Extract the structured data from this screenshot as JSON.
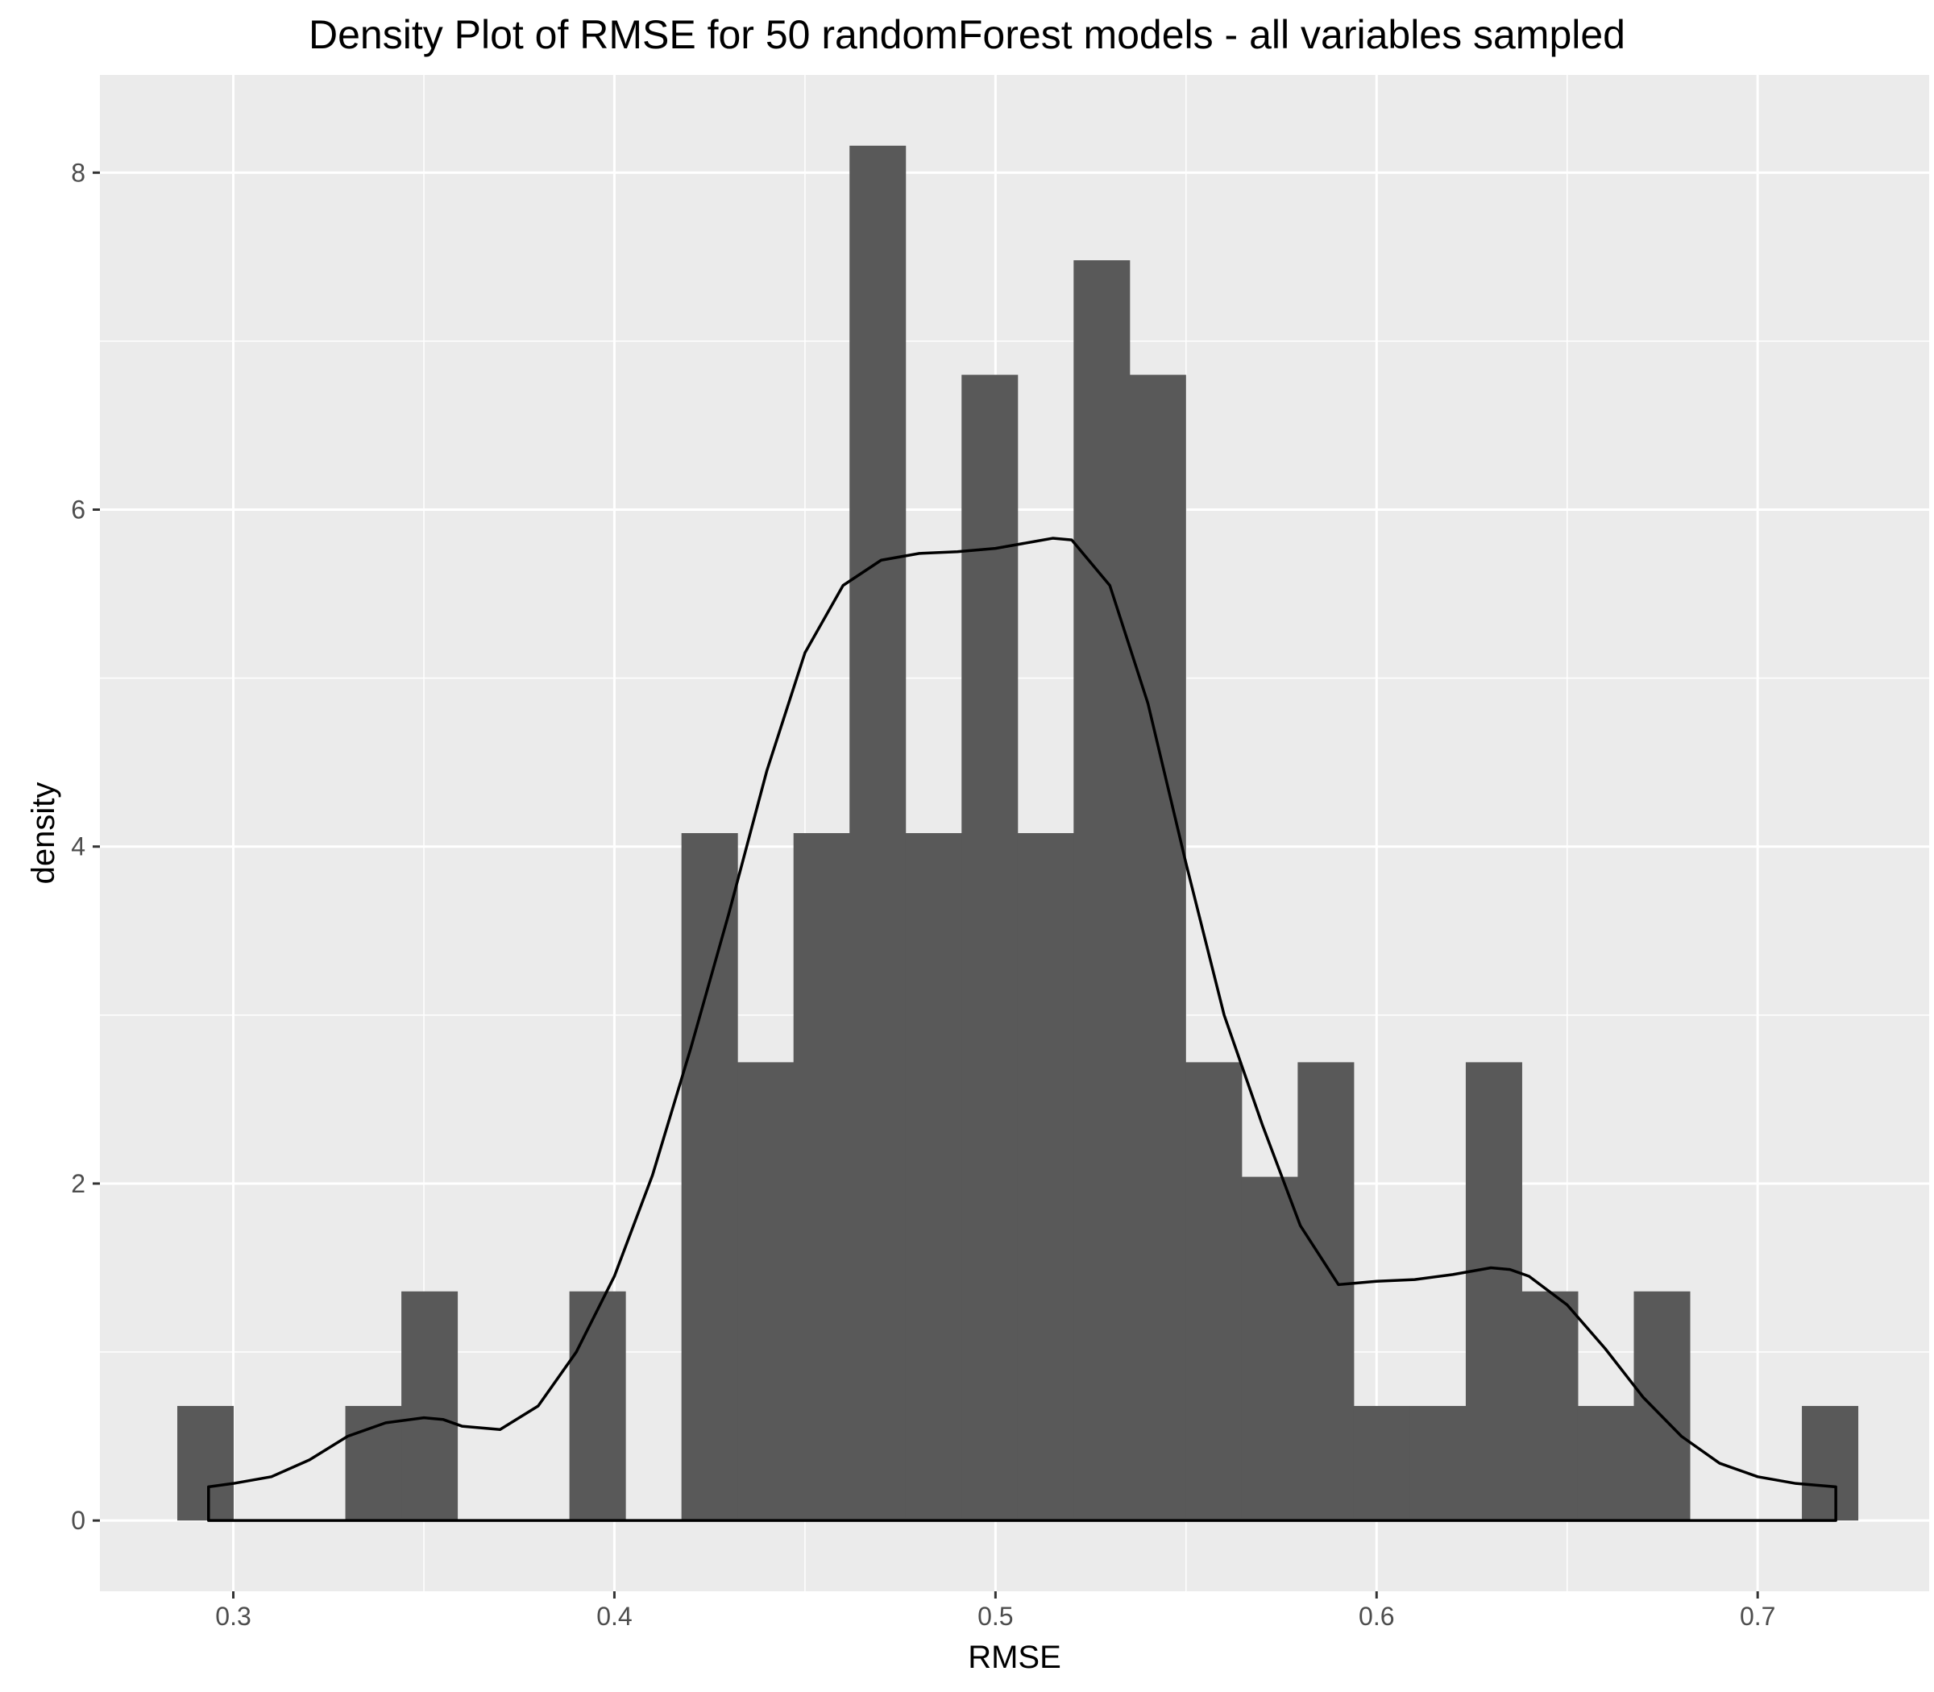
{
  "chart_data": {
    "type": "bar",
    "title": "Density Plot of RMSE for 50 randomForest models - all variables sampled",
    "xlabel": "RMSE",
    "ylabel": "density",
    "xlim": [
      0.265,
      0.745
    ],
    "ylim": [
      -0.42,
      8.58
    ],
    "x_ticks": [
      0.3,
      0.4,
      0.5,
      0.6,
      0.7
    ],
    "x_tick_labels": [
      "0.3",
      "0.4",
      "0.5",
      "0.6",
      "0.7"
    ],
    "y_ticks": [
      0,
      2,
      4,
      6,
      8
    ],
    "y_tick_labels": [
      "0",
      "2",
      "4",
      "6",
      "8"
    ],
    "grid": true,
    "histogram": {
      "bin_width": 0.0147,
      "bin_starts": [
        0.2853,
        0.3,
        0.3147,
        0.3294,
        0.3441,
        0.3588,
        0.3735,
        0.3882,
        0.4029,
        0.4176,
        0.4323,
        0.447,
        0.4617,
        0.4764,
        0.4911,
        0.5058,
        0.5205,
        0.5352,
        0.5499,
        0.5646,
        0.5793,
        0.594,
        0.6087,
        0.6234,
        0.6381,
        0.6528,
        0.6675,
        0.6822,
        0.6969,
        0.7116
      ],
      "densities": [
        0.68,
        0,
        0,
        0.68,
        1.36,
        0,
        0,
        1.36,
        0,
        4.08,
        2.72,
        4.08,
        8.16,
        4.08,
        6.8,
        4.08,
        7.48,
        6.8,
        2.72,
        2.04,
        2.72,
        0.68,
        0.68,
        2.72,
        1.36,
        0.68,
        1.36,
        0,
        0,
        0.68
      ],
      "fill_color": "#595959"
    },
    "density_curve": {
      "x": [
        0.2935,
        0.3,
        0.31,
        0.32,
        0.33,
        0.34,
        0.35,
        0.355,
        0.36,
        0.37,
        0.38,
        0.39,
        0.4,
        0.41,
        0.42,
        0.43,
        0.44,
        0.45,
        0.46,
        0.47,
        0.48,
        0.49,
        0.5,
        0.51,
        0.515,
        0.52,
        0.53,
        0.54,
        0.55,
        0.56,
        0.57,
        0.58,
        0.59,
        0.6,
        0.61,
        0.62,
        0.63,
        0.635,
        0.64,
        0.65,
        0.66,
        0.67,
        0.68,
        0.69,
        0.7,
        0.71,
        0.7205
      ],
      "y": [
        0.2,
        0.22,
        0.26,
        0.36,
        0.5,
        0.58,
        0.61,
        0.6,
        0.56,
        0.54,
        0.68,
        1.0,
        1.45,
        2.05,
        2.8,
        3.6,
        4.45,
        5.15,
        5.55,
        5.7,
        5.74,
        5.75,
        5.77,
        5.81,
        5.83,
        5.82,
        5.55,
        4.85,
        3.9,
        3.0,
        2.35,
        1.75,
        1.4,
        1.42,
        1.43,
        1.46,
        1.5,
        1.49,
        1.45,
        1.28,
        1.02,
        0.73,
        0.5,
        0.34,
        0.26,
        0.22,
        0.2
      ],
      "color": "#000000"
    },
    "panel_background": "#ebebeb",
    "grid_color": "#ffffff"
  }
}
